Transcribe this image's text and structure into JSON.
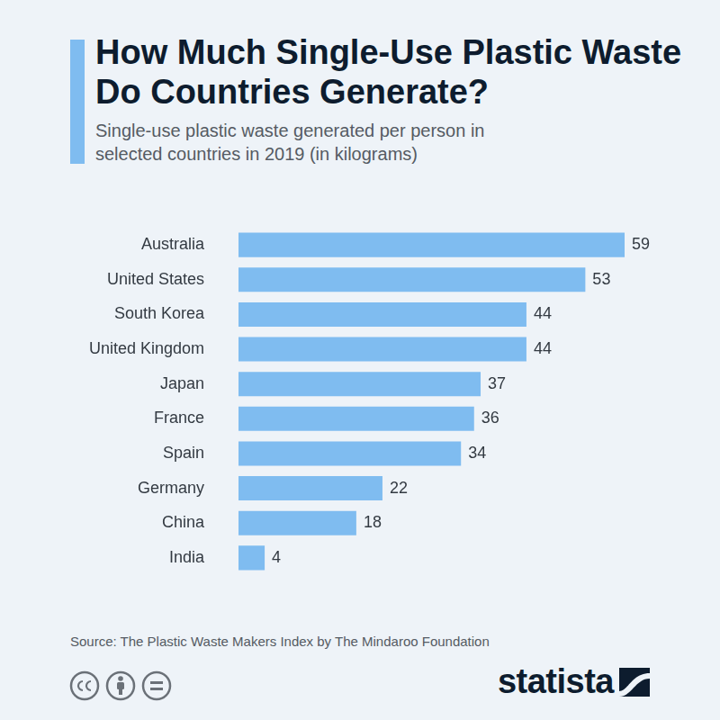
{
  "chart_data": {
    "type": "bar",
    "title": "How Much Single-Use Plastic Waste Do Countries Generate?",
    "subtitle": "Single-use plastic waste generated per person in selected countries in 2019 (in kilograms)",
    "categories": [
      "Australia",
      "United States",
      "South Korea",
      "United Kingdom",
      "Japan",
      "France",
      "Spain",
      "Germany",
      "China",
      "India"
    ],
    "values": [
      59,
      53,
      44,
      44,
      37,
      36,
      34,
      22,
      18,
      4
    ],
    "color": "#7fbcf0",
    "orientation": "horizontal",
    "data_labels": true,
    "grid": false,
    "tick_labels": "y",
    "xlim": [
      0,
      59
    ],
    "source": "Source: The Plastic Waste Makers Index by The Mindaroo Foundation",
    "logo": "statista"
  }
}
